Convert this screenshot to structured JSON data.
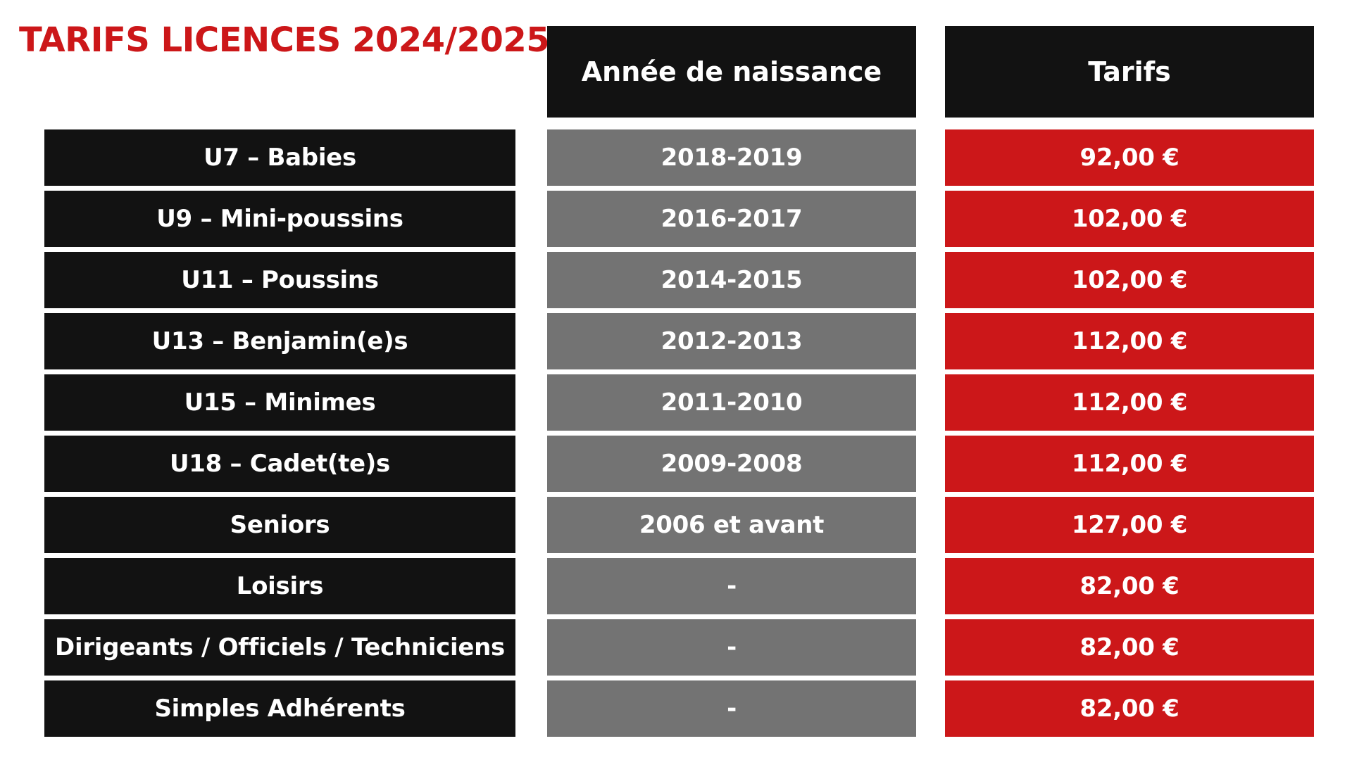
{
  "title": "TARIFS LICENCES 2024/2025",
  "headers": {
    "birth_year": "Année de naissance",
    "price": "Tarifs"
  },
  "rows": [
    {
      "category": "U7 – Babies",
      "birth_year": "2018-2019",
      "price": "92,00 €"
    },
    {
      "category": "U9 – Mini-poussins",
      "birth_year": "2016-2017",
      "price": "102,00 €"
    },
    {
      "category": "U11 – Poussins",
      "birth_year": "2014-2015",
      "price": "102,00 €"
    },
    {
      "category": "U13 – Benjamin(e)s",
      "birth_year": "2012-2013",
      "price": "112,00 €"
    },
    {
      "category": "U15 – Minimes",
      "birth_year": "2011-2010",
      "price": "112,00 €"
    },
    {
      "category": "U18 – Cadet(te)s",
      "birth_year": "2009-2008",
      "price": "112,00 €"
    },
    {
      "category": "Seniors",
      "birth_year": "2006 et avant",
      "price": "127,00 €"
    },
    {
      "category": "Loisirs",
      "birth_year": "-",
      "price": "82,00 €"
    },
    {
      "category": "Dirigeants / Officiels / Techniciens",
      "birth_year": "-",
      "price": "82,00 €"
    },
    {
      "category": "Simples Adhérents",
      "birth_year": "-",
      "price": "82,00 €"
    }
  ],
  "colors": {
    "title": "#cc1719",
    "category_bg": "#121212",
    "birth_bg": "#737373",
    "price_bg": "#cc1719",
    "text": "#ffffff"
  }
}
